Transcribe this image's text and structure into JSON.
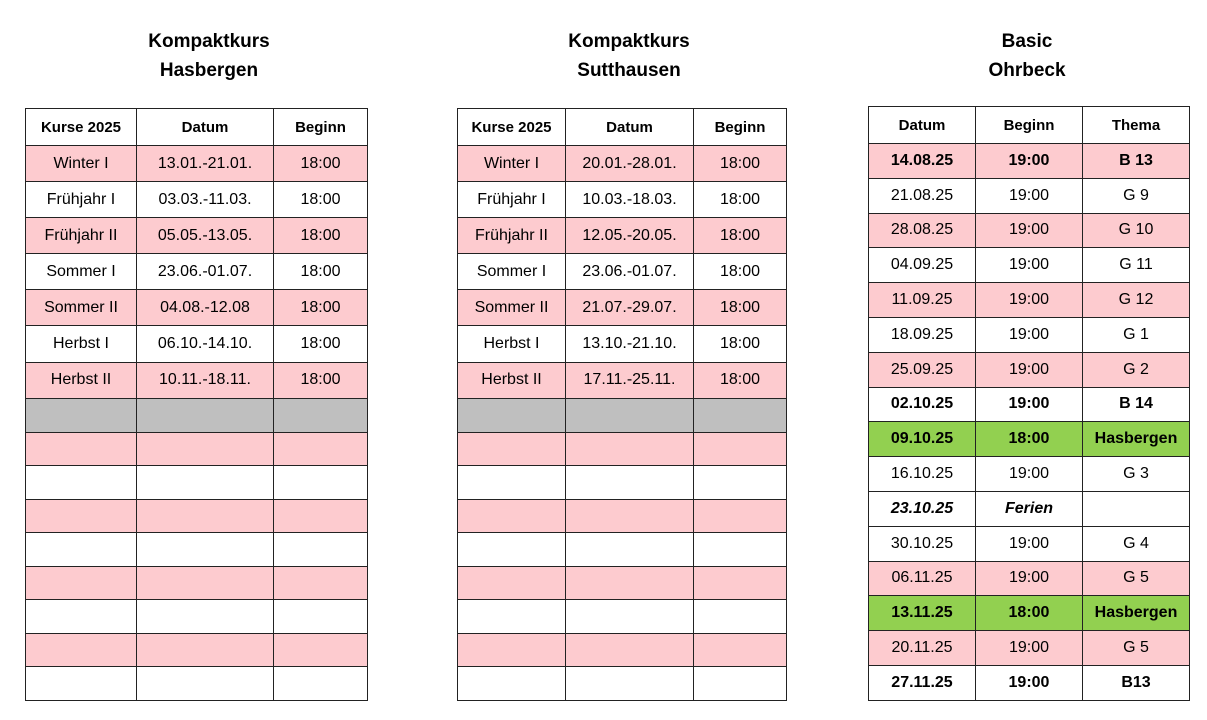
{
  "tables": [
    {
      "title_lines": [
        "Kompaktkurs",
        "Hasbergen"
      ],
      "columns": [
        "Kurse 2025",
        "Datum",
        "Beginn"
      ],
      "rows": [
        [
          "Winter I",
          "13.01.-21.01.",
          "18:00"
        ],
        [
          "Frühjahr I",
          "03.03.-11.03.",
          "18:00"
        ],
        [
          "Frühjahr II",
          "05.05.-13.05.",
          "18:00"
        ],
        [
          "Sommer I",
          "23.06.-01.07.",
          "18:00"
        ],
        [
          "Sommer II",
          "04.08.-12.08",
          "18:00"
        ],
        [
          "Herbst I",
          "06.10.-14.10.",
          "18:00"
        ],
        [
          "Herbst II",
          "10.11.-18.11.",
          "18:00"
        ]
      ]
    },
    {
      "title_lines": [
        "Kompaktkurs",
        "Sutthausen"
      ],
      "columns": [
        "Kurse 2025",
        "Datum",
        "Beginn"
      ],
      "rows": [
        [
          "Winter I",
          "20.01.-28.01.",
          "18:00"
        ],
        [
          "Frühjahr I",
          "10.03.-18.03.",
          "18:00"
        ],
        [
          "Frühjahr II",
          "12.05.-20.05.",
          "18:00"
        ],
        [
          "Sommer I",
          "23.06.-01.07.",
          "18:00"
        ],
        [
          "Sommer II",
          "21.07.-29.07.",
          "18:00"
        ],
        [
          "Herbst I",
          "13.10.-21.10.",
          "18:00"
        ],
        [
          "Herbst II",
          "17.11.-25.11.",
          "18:00"
        ]
      ]
    },
    {
      "title_lines": [
        "Basic",
        "Ohrbeck"
      ],
      "columns": [
        "Datum",
        "Beginn",
        "Thema"
      ],
      "rows": [
        [
          "14.08.25",
          "19:00",
          "B 13"
        ],
        [
          "21.08.25",
          "19:00",
          "G 9"
        ],
        [
          "28.08.25",
          "19:00",
          "G 10"
        ],
        [
          "04.09.25",
          "19:00",
          "G 11"
        ],
        [
          "11.09.25",
          "19:00",
          "G 12"
        ],
        [
          "18.09.25",
          "19:00",
          "G 1"
        ],
        [
          "25.09.25",
          "19:00",
          "G 2"
        ],
        [
          "02.10.25",
          "19:00",
          "B 14"
        ],
        [
          "09.10.25",
          "18:00",
          "Hasbergen"
        ],
        [
          "16.10.25",
          "19:00",
          "G 3"
        ],
        [
          "23.10.25",
          "Ferien"
        ],
        [
          "30.10.25",
          "19:00",
          "G 4"
        ],
        [
          "06.11.25",
          "19:00",
          "G 5"
        ],
        [
          "13.11.25",
          "18:00",
          "Hasbergen"
        ],
        [
          "20.11.25",
          "19:00",
          "G 5"
        ],
        [
          "27.11.25",
          "19:00",
          "B13"
        ]
      ]
    }
  ]
}
